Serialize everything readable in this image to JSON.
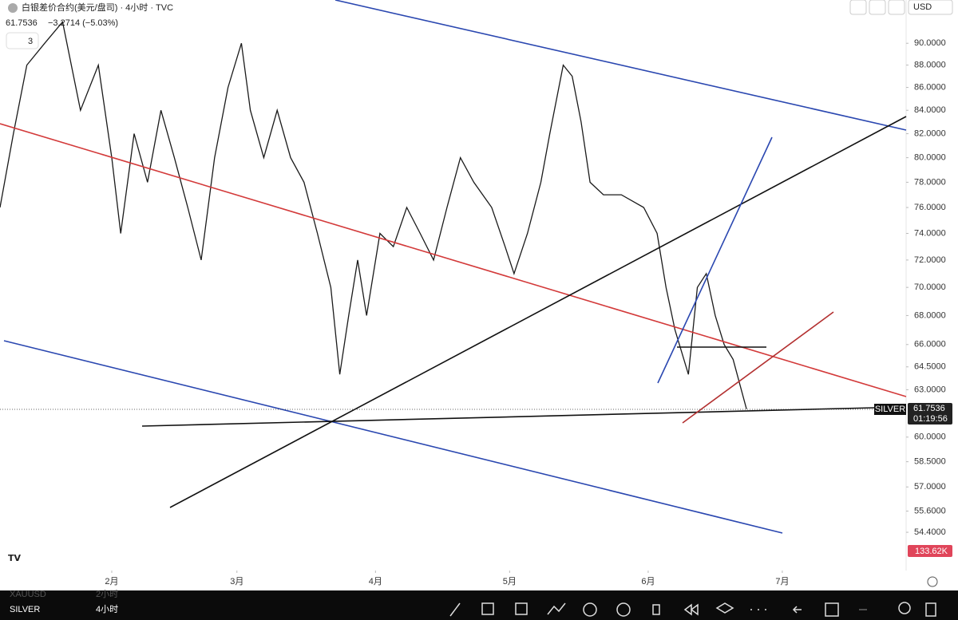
{
  "header": {
    "title": "白银差价合约(美元/盘司) · 4小时 · TVC",
    "last": "61.7536",
    "change": "−3.2714 (−5.03%)",
    "indicator_count": "3",
    "currency": "USD"
  },
  "chart_data": {
    "type": "line",
    "color": "#1a1a1a",
    "log_scale": true,
    "x": [
      6,
      9,
      12,
      16,
      20,
      24,
      28,
      31,
      33,
      36,
      39,
      42,
      45,
      48,
      51,
      54,
      57,
      60,
      62,
      65,
      68,
      71,
      74,
      77,
      80,
      82,
      84,
      86,
      88,
      91,
      94,
      97,
      100,
      103,
      106,
      109,
      112,
      116,
      119,
      121,
      124,
      127,
      129,
      132,
      134,
      136,
      138,
      141,
      145,
      150,
      153,
      155,
      157,
      160,
      162,
      164,
      166,
      168,
      170,
      173
    ],
    "values": [
      76,
      82,
      88,
      90,
      92,
      84,
      88,
      80,
      74,
      82,
      78,
      84,
      80,
      76,
      72,
      80,
      86,
      90,
      84,
      80,
      84,
      80,
      78,
      74,
      70,
      64,
      68,
      72,
      68,
      74,
      73,
      76,
      74,
      72,
      76,
      80,
      78,
      76,
      73,
      71,
      74,
      78,
      82,
      88,
      87,
      83,
      78,
      77,
      77,
      76,
      74,
      70,
      67,
      64,
      70,
      71,
      68,
      66,
      65,
      61.7536
    ],
    "xlim": [
      6,
      208.7
    ],
    "xticks": [
      {
        "value": 31,
        "label": "2月"
      },
      {
        "value": 59,
        "label": "3月"
      },
      {
        "value": 90,
        "label": "4月"
      },
      {
        "value": 120,
        "label": "5月"
      },
      {
        "value": 151,
        "label": "6月"
      },
      {
        "value": 181,
        "label": "7月"
      }
    ],
    "ylim": [
      52.3,
      94.1
    ],
    "yticks": [
      {
        "value": 90,
        "label": "90.0000"
      },
      {
        "value": 88,
        "label": "88.0000"
      },
      {
        "value": 86,
        "label": "86.0000"
      },
      {
        "value": 84,
        "label": "84.0000"
      },
      {
        "value": 82,
        "label": "82.0000"
      },
      {
        "value": 80,
        "label": "80.0000"
      },
      {
        "value": 78,
        "label": "78.0000"
      },
      {
        "value": 76,
        "label": "76.0000"
      },
      {
        "value": 74,
        "label": "74.0000"
      },
      {
        "value": 72,
        "label": "72.0000"
      },
      {
        "value": 70,
        "label": "70.0000"
      },
      {
        "value": 68,
        "label": "68.0000"
      },
      {
        "value": 66,
        "label": "66.0000"
      },
      {
        "value": 64.5,
        "label": "64.5000"
      },
      {
        "value": 63,
        "label": "63.0000"
      },
      {
        "value": 60,
        "label": "60.0000"
      },
      {
        "value": 58.5,
        "label": "58.5000"
      },
      {
        "value": 57,
        "label": "57.0000"
      },
      {
        "value": 55.6,
        "label": "55.6000"
      },
      {
        "value": 54.4,
        "label": "54.4000"
      }
    ]
  },
  "price_tag": {
    "symbol": "SILVER",
    "price": "61.7536",
    "countdown": "01:19:56"
  },
  "volume_tag": "133.62K",
  "footer": {
    "symbol": "SILVER",
    "interval": "4小时",
    "compare_symbol": "XAUUSD",
    "compare_interval": "2小时"
  }
}
